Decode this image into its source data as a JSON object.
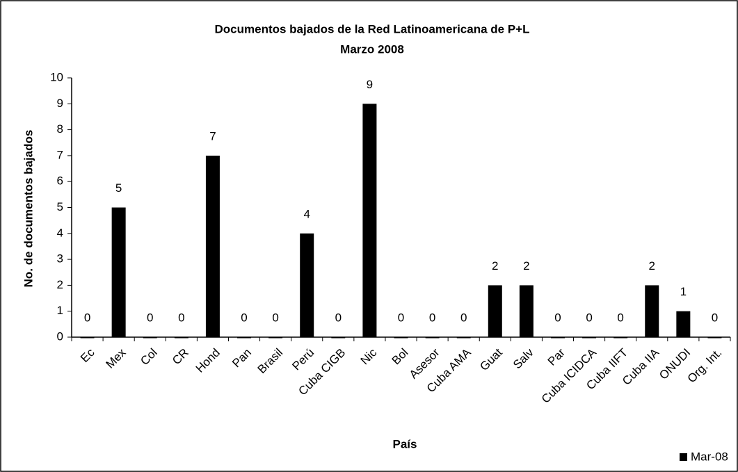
{
  "chart_data": {
    "type": "bar",
    "title": "Documentos bajados de la Red Latinoamericana de P+L",
    "subtitle": "Marzo 2008",
    "x_label": "País",
    "y_label": "No. de documentos bajados",
    "categories": [
      "Ec",
      "Mex",
      "Col",
      "CR",
      "Hond",
      "Pan",
      "Brasil",
      "Perú",
      "Cuba CIGB",
      "Nic",
      "Bol",
      "Asesor",
      "Cuba AMA",
      "Guat",
      "Salv",
      "Par",
      "Cuba ICIDCA",
      "Cuba IIFT",
      "Cuba IIA",
      "ONUDI",
      "Org. Int."
    ],
    "series": [
      {
        "name": "Mar-08",
        "color": "#000000",
        "values": [
          0,
          5,
          0,
          0,
          7,
          0,
          0,
          4,
          0,
          9,
          0,
          0,
          0,
          2,
          2,
          0,
          0,
          0,
          2,
          1,
          0
        ]
      }
    ],
    "ylim": [
      0,
      10
    ],
    "yticks": [
      0,
      1,
      2,
      3,
      4,
      5,
      6,
      7,
      8,
      9,
      10
    ],
    "grid": false,
    "legend": "bottom-right"
  }
}
